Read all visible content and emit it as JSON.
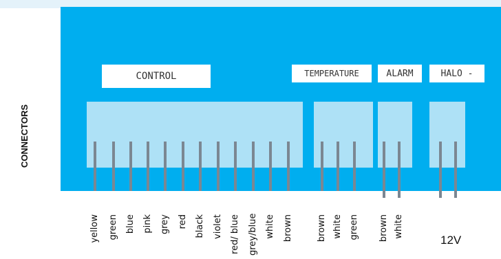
{
  "title": "CONNECTORS",
  "groups": [
    {
      "id": "control",
      "label": "CONTROL",
      "wires": [
        "yellow",
        "green",
        "blue",
        "pink",
        "grey",
        "red",
        "black",
        "violet",
        "red/\nblue",
        "grey/blue",
        "white",
        "brown"
      ]
    },
    {
      "id": "temperature",
      "label": "TEMPERATURE",
      "wires": [
        "brown",
        "white",
        "green"
      ]
    },
    {
      "id": "alarm",
      "label": "ALARM",
      "wires": [
        "brown",
        "white"
      ]
    },
    {
      "id": "halo",
      "label": "HALO -",
      "wires": [],
      "caption": "12V"
    }
  ],
  "colors": {
    "board": "#00aeef",
    "connector": "#aee1f6",
    "pin": "#7b8792",
    "strip": "#e4f2fa"
  }
}
